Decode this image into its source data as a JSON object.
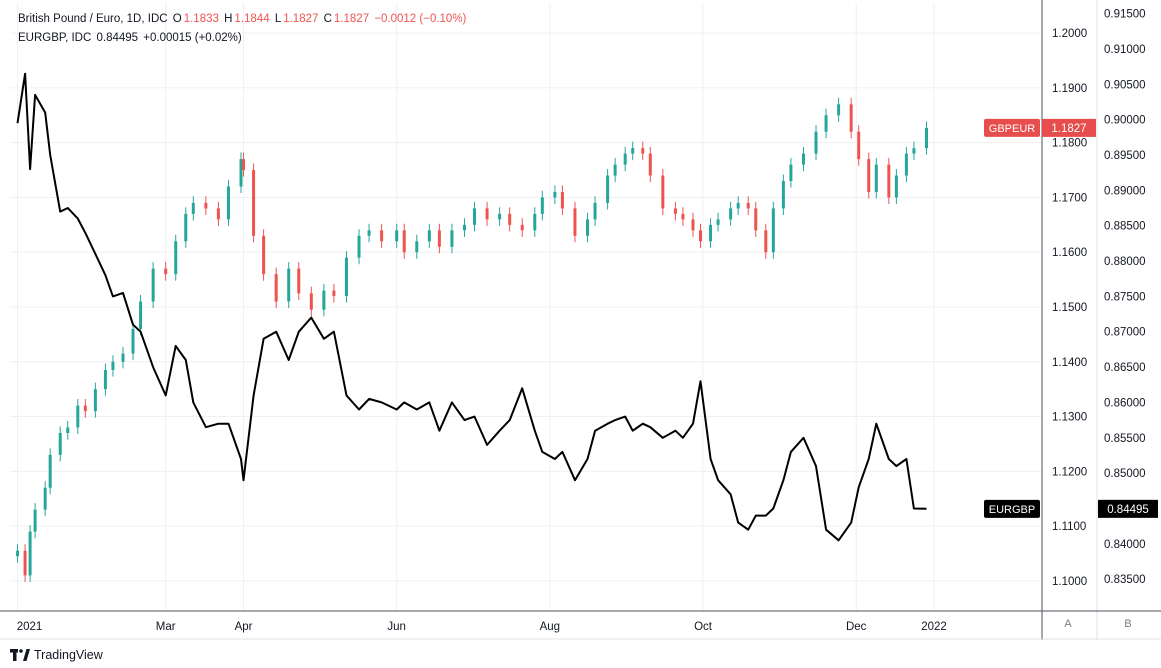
{
  "legend": {
    "main": {
      "name": "British Pound / Euro, 1D, IDC",
      "o_label": "O",
      "o": "1.1833",
      "h_label": "H",
      "h": "1.1844",
      "l_label": "L",
      "l": "1.1827",
      "c_label": "C",
      "c": "1.1827",
      "chg": "−0.0012 (−0.10%)"
    },
    "compare": {
      "name": "EURGBP, IDC",
      "value": "0.84495",
      "chg": "+0.00015 (+0.02%)"
    }
  },
  "badges": {
    "gbpeur_label": "GBPEUR",
    "gbpeur_value": "1.1827",
    "eurgbp_label": "EURGBP",
    "eurgbp_value": "0.84495"
  },
  "scale_buttons": {
    "a": "A",
    "b": "B"
  },
  "footer": {
    "brand": "TradingView"
  },
  "colors": {
    "up": "#26a69a",
    "down": "#ef5350",
    "line": "#000000",
    "grid": "#eef0f4",
    "badge_red": "#e84d4d"
  },
  "chart_data": {
    "type": "line",
    "title": "",
    "x_ticks": [
      "2021",
      "Mar",
      "Apr",
      "Jun",
      "Aug",
      "Oct",
      "Dec",
      "2022"
    ],
    "x_tick_dates": [
      "2021-01-01",
      "2021-03-01",
      "2021-04-01",
      "2021-06-01",
      "2021-08-01",
      "2021-10-01",
      "2021-12-01",
      "2022-01-01"
    ],
    "xlim": [
      "2020-12-29",
      "2022-02-13"
    ],
    "y_left": {
      "ticks": [
        "1.2000",
        "1.1900",
        "1.1800",
        "1.1700",
        "1.1600",
        "1.1500",
        "1.1400",
        "1.1300",
        "1.1200",
        "1.1100",
        "1.1000"
      ],
      "range": [
        1.0945,
        1.2055
      ]
    },
    "y_right": {
      "ticks": [
        "0.91500",
        "0.91000",
        "0.90500",
        "0.90000",
        "0.89500",
        "0.89000",
        "0.88500",
        "0.88000",
        "0.87500",
        "0.87000",
        "0.86500",
        "0.86000",
        "0.85500",
        "0.85000",
        "0.84500",
        "0.84000",
        "0.83500"
      ],
      "range": [
        0.8305,
        0.9165
      ]
    },
    "grid": true,
    "series": [
      {
        "name": "GBPEUR",
        "style": "candles",
        "axis": "left",
        "points": [
          [
            "2021-01-01",
            1.1055
          ],
          [
            "2021-01-04",
            1.101
          ],
          [
            "2021-01-06",
            1.109
          ],
          [
            "2021-01-08",
            1.113
          ],
          [
            "2021-01-12",
            1.117
          ],
          [
            "2021-01-14",
            1.123
          ],
          [
            "2021-01-18",
            1.127
          ],
          [
            "2021-01-21",
            1.128
          ],
          [
            "2021-01-25",
            1.132
          ],
          [
            "2021-01-28",
            1.131
          ],
          [
            "2021-02-01",
            1.135
          ],
          [
            "2021-02-05",
            1.1385
          ],
          [
            "2021-02-08",
            1.14
          ],
          [
            "2021-02-12",
            1.1415
          ],
          [
            "2021-02-16",
            1.146
          ],
          [
            "2021-02-19",
            1.151
          ],
          [
            "2021-02-24",
            1.157
          ],
          [
            "2021-03-01",
            1.156
          ],
          [
            "2021-03-05",
            1.162
          ],
          [
            "2021-03-09",
            1.167
          ],
          [
            "2021-03-12",
            1.169
          ],
          [
            "2021-03-17",
            1.168
          ],
          [
            "2021-03-22",
            1.166
          ],
          [
            "2021-03-26",
            1.172
          ],
          [
            "2021-03-31",
            1.177
          ],
          [
            "2021-04-01",
            1.175
          ],
          [
            "2021-04-05",
            1.163
          ],
          [
            "2021-04-09",
            1.156
          ],
          [
            "2021-04-14",
            1.151
          ],
          [
            "2021-04-19",
            1.157
          ],
          [
            "2021-04-23",
            1.1525
          ],
          [
            "2021-04-28",
            1.1495
          ],
          [
            "2021-05-03",
            1.153
          ],
          [
            "2021-05-07",
            1.152
          ],
          [
            "2021-05-12",
            1.159
          ],
          [
            "2021-05-17",
            1.163
          ],
          [
            "2021-05-21",
            1.164
          ],
          [
            "2021-05-26",
            1.162
          ],
          [
            "2021-06-01",
            1.164
          ],
          [
            "2021-06-04",
            1.16
          ],
          [
            "2021-06-09",
            1.162
          ],
          [
            "2021-06-14",
            1.164
          ],
          [
            "2021-06-18",
            1.161
          ],
          [
            "2021-06-23",
            1.164
          ],
          [
            "2021-06-28",
            1.165
          ],
          [
            "2021-07-02",
            1.168
          ],
          [
            "2021-07-07",
            1.166
          ],
          [
            "2021-07-12",
            1.167
          ],
          [
            "2021-07-16",
            1.165
          ],
          [
            "2021-07-21",
            1.164
          ],
          [
            "2021-07-26",
            1.167
          ],
          [
            "2021-07-29",
            1.17
          ],
          [
            "2021-08-03",
            1.171
          ],
          [
            "2021-08-06",
            1.168
          ],
          [
            "2021-08-11",
            1.163
          ],
          [
            "2021-08-16",
            1.166
          ],
          [
            "2021-08-19",
            1.169
          ],
          [
            "2021-08-24",
            1.174
          ],
          [
            "2021-08-27",
            1.176
          ],
          [
            "2021-08-31",
            1.178
          ],
          [
            "2021-09-03",
            1.179
          ],
          [
            "2021-09-07",
            1.178
          ],
          [
            "2021-09-10",
            1.174
          ],
          [
            "2021-09-15",
            1.168
          ],
          [
            "2021-09-20",
            1.167
          ],
          [
            "2021-09-23",
            1.166
          ],
          [
            "2021-09-27",
            1.164
          ],
          [
            "2021-09-30",
            1.162
          ],
          [
            "2021-10-04",
            1.165
          ],
          [
            "2021-10-07",
            1.166
          ],
          [
            "2021-10-12",
            1.168
          ],
          [
            "2021-10-15",
            1.169
          ],
          [
            "2021-10-19",
            1.168
          ],
          [
            "2021-10-22",
            1.164
          ],
          [
            "2021-10-26",
            1.16
          ],
          [
            "2021-10-29",
            1.168
          ],
          [
            "2021-11-02",
            1.173
          ],
          [
            "2021-11-05",
            1.176
          ],
          [
            "2021-11-10",
            1.178
          ],
          [
            "2021-11-15",
            1.182
          ],
          [
            "2021-11-19",
            1.185
          ],
          [
            "2021-11-24",
            1.187
          ],
          [
            "2021-11-29",
            1.182
          ],
          [
            "2021-12-02",
            1.177
          ],
          [
            "2021-12-06",
            1.171
          ],
          [
            "2021-12-09",
            1.176
          ],
          [
            "2021-12-14",
            1.17
          ],
          [
            "2021-12-17",
            1.174
          ],
          [
            "2021-12-21",
            1.178
          ],
          [
            "2021-12-24",
            1.179
          ],
          [
            "2021-12-29",
            1.1827
          ]
        ]
      },
      {
        "name": "EURGBP",
        "style": "line",
        "axis": "right",
        "points": [
          [
            "2021-01-01",
            0.8995
          ],
          [
            "2021-01-04",
            0.9065
          ],
          [
            "2021-01-06",
            0.893
          ],
          [
            "2021-01-08",
            0.9035
          ],
          [
            "2021-01-12",
            0.901
          ],
          [
            "2021-01-14",
            0.895
          ],
          [
            "2021-01-18",
            0.887
          ],
          [
            "2021-01-21",
            0.8875
          ],
          [
            "2021-01-25",
            0.886
          ],
          [
            "2021-01-28",
            0.884
          ],
          [
            "2021-02-01",
            0.881
          ],
          [
            "2021-02-05",
            0.878
          ],
          [
            "2021-02-08",
            0.875
          ],
          [
            "2021-02-12",
            0.8755
          ],
          [
            "2021-02-16",
            0.871
          ],
          [
            "2021-02-19",
            0.87
          ],
          [
            "2021-02-24",
            0.865
          ],
          [
            "2021-03-01",
            0.861
          ],
          [
            "2021-03-05",
            0.868
          ],
          [
            "2021-03-09",
            0.866
          ],
          [
            "2021-03-12",
            0.86
          ],
          [
            "2021-03-17",
            0.8565
          ],
          [
            "2021-03-22",
            0.857
          ],
          [
            "2021-03-26",
            0.857
          ],
          [
            "2021-03-31",
            0.852
          ],
          [
            "2021-04-01",
            0.849
          ],
          [
            "2021-04-05",
            0.861
          ],
          [
            "2021-04-09",
            0.869
          ],
          [
            "2021-04-14",
            0.87
          ],
          [
            "2021-04-19",
            0.866
          ],
          [
            "2021-04-23",
            0.87
          ],
          [
            "2021-04-28",
            0.872
          ],
          [
            "2021-05-03",
            0.869
          ],
          [
            "2021-05-07",
            0.87
          ],
          [
            "2021-05-12",
            0.861
          ],
          [
            "2021-05-17",
            0.859
          ],
          [
            "2021-05-21",
            0.8605
          ],
          [
            "2021-05-26",
            0.86
          ],
          [
            "2021-06-01",
            0.859
          ],
          [
            "2021-06-04",
            0.86
          ],
          [
            "2021-06-09",
            0.859
          ],
          [
            "2021-06-14",
            0.86
          ],
          [
            "2021-06-18",
            0.856
          ],
          [
            "2021-06-23",
            0.86
          ],
          [
            "2021-06-28",
            0.8575
          ],
          [
            "2021-07-02",
            0.858
          ],
          [
            "2021-07-07",
            0.854
          ],
          [
            "2021-07-12",
            0.856
          ],
          [
            "2021-07-16",
            0.8575
          ],
          [
            "2021-07-21",
            0.862
          ],
          [
            "2021-07-26",
            0.856
          ],
          [
            "2021-07-29",
            0.853
          ],
          [
            "2021-08-03",
            0.852
          ],
          [
            "2021-08-06",
            0.853
          ],
          [
            "2021-08-11",
            0.849
          ],
          [
            "2021-08-16",
            0.852
          ],
          [
            "2021-08-19",
            0.856
          ],
          [
            "2021-08-24",
            0.857
          ],
          [
            "2021-08-27",
            0.8575
          ],
          [
            "2021-08-31",
            0.858
          ],
          [
            "2021-09-03",
            0.856
          ],
          [
            "2021-09-07",
            0.857
          ],
          [
            "2021-09-10",
            0.8565
          ],
          [
            "2021-09-15",
            0.855
          ],
          [
            "2021-09-20",
            0.856
          ],
          [
            "2021-09-23",
            0.855
          ],
          [
            "2021-09-27",
            0.857
          ],
          [
            "2021-09-30",
            0.863
          ],
          [
            "2021-10-04",
            0.852
          ],
          [
            "2021-10-07",
            0.849
          ],
          [
            "2021-10-12",
            0.847
          ],
          [
            "2021-10-15",
            0.843
          ],
          [
            "2021-10-19",
            0.842
          ],
          [
            "2021-10-22",
            0.844
          ],
          [
            "2021-10-26",
            0.844
          ],
          [
            "2021-10-29",
            0.845
          ],
          [
            "2021-11-02",
            0.849
          ],
          [
            "2021-11-05",
            0.853
          ],
          [
            "2021-11-10",
            0.855
          ],
          [
            "2021-11-15",
            0.851
          ],
          [
            "2021-11-19",
            0.842
          ],
          [
            "2021-11-24",
            0.8405
          ],
          [
            "2021-11-29",
            0.843
          ],
          [
            "2021-12-02",
            0.848
          ],
          [
            "2021-12-06",
            0.852
          ],
          [
            "2021-12-09",
            0.857
          ],
          [
            "2021-12-14",
            0.852
          ],
          [
            "2021-12-17",
            0.851
          ],
          [
            "2021-12-21",
            0.852
          ],
          [
            "2021-12-24",
            0.845
          ],
          [
            "2021-12-29",
            0.84495
          ]
        ]
      }
    ]
  }
}
